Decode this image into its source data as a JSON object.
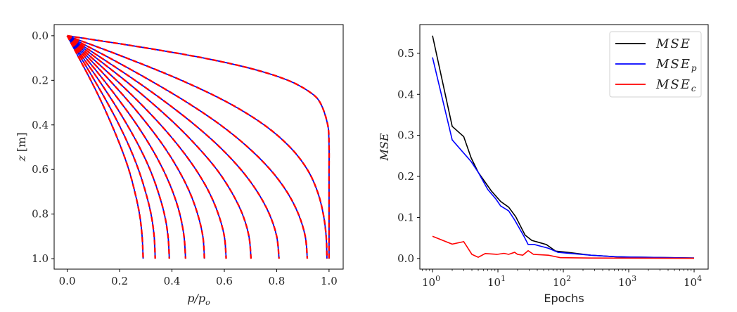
{
  "chart_data": [
    {
      "type": "line",
      "xlabel": "p/p_o",
      "xlabel_main": "p/p",
      "xlabel_sub": "o",
      "ylabel": "z [m]",
      "ylabel_var": "z",
      "ylabel_unit": " [m]",
      "xlim": [
        -0.05,
        1.054
      ],
      "ylim": [
        -0.05,
        1.047
      ],
      "y_inverted": true,
      "grid": false,
      "xticks": [
        0.0,
        0.2,
        0.4,
        0.6,
        0.8,
        1.0
      ],
      "xtick_labels": [
        "0.0",
        "0.2",
        "0.4",
        "0.6",
        "0.8",
        "1.0"
      ],
      "yticks": [
        0.0,
        0.2,
        0.4,
        0.6,
        0.8,
        1.0
      ],
      "ytick_labels": [
        "0.0",
        "0.2",
        "0.4",
        "0.6",
        "0.8",
        "1.0"
      ],
      "line_styles": [
        {
          "color": "#000000",
          "dash": "solid"
        },
        {
          "color": "#0000ff",
          "dash": "solid"
        },
        {
          "color": "#ff0000",
          "dash": "dashed"
        }
      ],
      "curves": [
        {
          "z": [
            0,
            0.1,
            0.2,
            0.3,
            0.4,
            0.5,
            0.6,
            0.7,
            0.8,
            0.9,
            1.0
          ],
          "p": [
            0,
            0.045,
            0.09,
            0.132,
            0.17,
            0.205,
            0.235,
            0.258,
            0.276,
            0.286,
            0.29
          ]
        },
        {
          "z": [
            0,
            0.1,
            0.2,
            0.3,
            0.4,
            0.5,
            0.6,
            0.7,
            0.8,
            0.9,
            1.0
          ],
          "p": [
            0,
            0.053,
            0.104,
            0.153,
            0.198,
            0.238,
            0.272,
            0.299,
            0.32,
            0.332,
            0.336
          ]
        },
        {
          "z": [
            0,
            0.1,
            0.2,
            0.3,
            0.4,
            0.5,
            0.6,
            0.7,
            0.8,
            0.9,
            1.0
          ],
          "p": [
            0,
            0.061,
            0.121,
            0.177,
            0.229,
            0.276,
            0.316,
            0.347,
            0.371,
            0.385,
            0.39
          ]
        },
        {
          "z": [
            0,
            0.1,
            0.2,
            0.3,
            0.4,
            0.5,
            0.6,
            0.7,
            0.8,
            0.9,
            1.0
          ],
          "p": [
            0,
            0.071,
            0.14,
            0.205,
            0.266,
            0.32,
            0.366,
            0.403,
            0.43,
            0.446,
            0.452
          ]
        },
        {
          "z": [
            0,
            0.1,
            0.2,
            0.3,
            0.4,
            0.5,
            0.6,
            0.7,
            0.8,
            0.9,
            1.0
          ],
          "p": [
            0,
            0.082,
            0.162,
            0.238,
            0.308,
            0.371,
            0.424,
            0.467,
            0.498,
            0.518,
            0.524
          ]
        },
        {
          "z": [
            0,
            0.1,
            0.2,
            0.3,
            0.4,
            0.5,
            0.6,
            0.7,
            0.8,
            0.9,
            1.0
          ],
          "p": [
            0,
            0.095,
            0.188,
            0.276,
            0.357,
            0.429,
            0.491,
            0.541,
            0.577,
            0.6,
            0.607
          ]
        },
        {
          "z": [
            0,
            0.1,
            0.2,
            0.3,
            0.4,
            0.5,
            0.6,
            0.7,
            0.8,
            0.9,
            1.0
          ],
          "p": [
            0,
            0.111,
            0.22,
            0.322,
            0.416,
            0.499,
            0.571,
            0.627,
            0.669,
            0.694,
            0.702
          ]
        },
        {
          "z": [
            0,
            0.1,
            0.2,
            0.3,
            0.4,
            0.5,
            0.6,
            0.7,
            0.8,
            0.9,
            1.0
          ],
          "p": [
            0,
            0.131,
            0.259,
            0.378,
            0.487,
            0.583,
            0.663,
            0.726,
            0.772,
            0.8,
            0.809
          ]
        },
        {
          "z": [
            0,
            0.1,
            0.2,
            0.3,
            0.4,
            0.5,
            0.6,
            0.7,
            0.8,
            0.9,
            1.0
          ],
          "p": [
            0,
            0.162,
            0.316,
            0.459,
            0.585,
            0.69,
            0.775,
            0.839,
            0.883,
            0.909,
            0.917
          ]
        },
        {
          "z": [
            0,
            0.1,
            0.2,
            0.3,
            0.4,
            0.5,
            0.6,
            0.7,
            0.8,
            0.9,
            1.0
          ],
          "p": [
            0,
            0.227,
            0.436,
            0.614,
            0.752,
            0.851,
            0.917,
            0.956,
            0.978,
            0.989,
            0.992
          ]
        },
        {
          "z": [
            0,
            0.05,
            0.1,
            0.15,
            0.2,
            0.25,
            0.3,
            0.4,
            0.5,
            0.6,
            0.7,
            0.8,
            0.9,
            1.0
          ],
          "p": [
            0,
            0.276,
            0.521,
            0.711,
            0.843,
            0.923,
            0.966,
            0.995,
            1.0,
            1.0,
            1.0,
            1.0,
            1.0,
            1.0
          ]
        }
      ]
    },
    {
      "type": "line",
      "xlabel": "Epochs",
      "ylabel": "MSE",
      "xscale": "log",
      "xlim": [
        0.64,
        16400
      ],
      "ylim": [
        -0.026,
        0.57
      ],
      "grid": false,
      "legend_position": "top-right",
      "xticks": [
        1,
        10,
        100,
        1000,
        10000
      ],
      "xtick_labels": [
        {
          "base": "10",
          "exp": "0"
        },
        {
          "base": "10",
          "exp": "1"
        },
        {
          "base": "10",
          "exp": "2"
        },
        {
          "base": "10",
          "exp": "3"
        },
        {
          "base": "10",
          "exp": "4"
        }
      ],
      "yticks": [
        0.0,
        0.1,
        0.2,
        0.3,
        0.4,
        0.5
      ],
      "ytick_labels": [
        "0.0",
        "0.1",
        "0.2",
        "0.3",
        "0.4",
        "0.5"
      ],
      "series": [
        {
          "name": "MSE",
          "name_main": "MSE",
          "name_sub": "",
          "color": "#000000",
          "x": [
            1,
            2,
            3,
            3.9,
            5,
            7.9,
            11,
            14.6,
            18.7,
            26,
            33,
            55,
            76,
            115,
            263,
            650,
            10000
          ],
          "y": [
            0.543,
            0.322,
            0.297,
            0.245,
            0.21,
            0.165,
            0.139,
            0.125,
            0.102,
            0.057,
            0.044,
            0.034,
            0.018,
            0.015,
            0.008,
            0.004,
            0.001
          ]
        },
        {
          "name": "MSE_p",
          "name_main": "MSE",
          "name_sub": "p",
          "color": "#0000ff",
          "x": [
            1,
            2,
            3.9,
            5,
            7,
            9.3,
            11,
            14.6,
            18,
            25,
            29,
            36,
            59,
            83,
            263,
            650,
            10000
          ],
          "y": [
            0.49,
            0.289,
            0.236,
            0.21,
            0.168,
            0.145,
            0.128,
            0.116,
            0.094,
            0.054,
            0.034,
            0.034,
            0.025,
            0.015,
            0.008,
            0.004,
            0.001
          ]
        },
        {
          "name": "MSE_c",
          "name_main": "MSE",
          "name_sub": "c",
          "color": "#ff0000",
          "x": [
            1,
            2,
            3,
            4,
            5,
            6.4,
            9.7,
            12.4,
            14.6,
            18,
            20,
            24,
            29,
            35,
            59,
            90,
            263,
            10000
          ],
          "y": [
            0.054,
            0.035,
            0.041,
            0.01,
            0.003,
            0.012,
            0.01,
            0.0125,
            0.01,
            0.015,
            0.01,
            0.008,
            0.019,
            0.01,
            0.008,
            0.002,
            0.001,
            0.0005
          ]
        }
      ]
    }
  ]
}
